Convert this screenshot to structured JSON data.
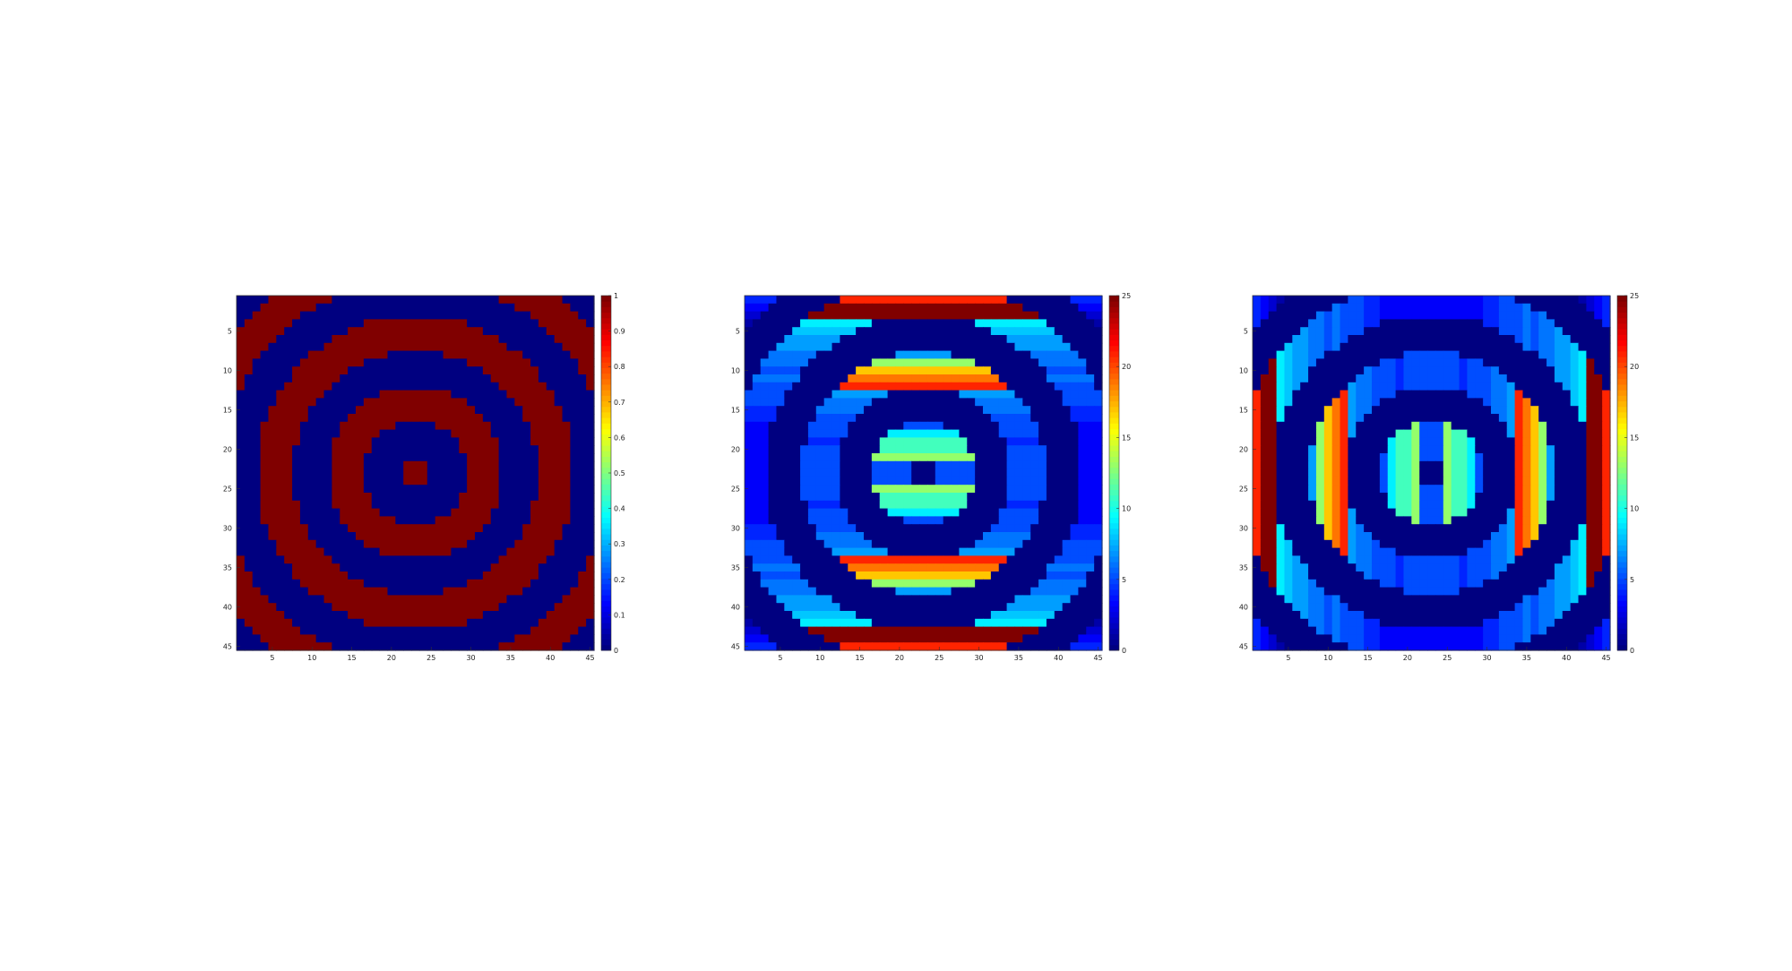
{
  "chart_data": [
    {
      "type": "heatmap",
      "size": 45,
      "pattern": "binary-rings",
      "colormap": "jet",
      "xticks": [
        5,
        10,
        15,
        20,
        25,
        30,
        35,
        40,
        45
      ],
      "yticks": [
        5,
        10,
        15,
        20,
        25,
        30,
        35,
        40,
        45
      ],
      "clim": [
        0,
        1
      ],
      "colorbar_ticks": [
        "0",
        "0.1",
        "0.2",
        "0.3",
        "0.4",
        "0.5",
        "0.6",
        "0.7",
        "0.8",
        "0.9",
        "1"
      ]
    },
    {
      "type": "heatmap",
      "size": 45,
      "pattern": "horizontal-run-length",
      "colormap": "jet",
      "xticks": [
        5,
        10,
        15,
        20,
        25,
        30,
        35,
        40,
        45
      ],
      "yticks": [
        5,
        10,
        15,
        20,
        25,
        30,
        35,
        40,
        45
      ],
      "clim": [
        0,
        25
      ],
      "colorbar_ticks": [
        "0",
        "5",
        "10",
        "15",
        "20",
        "25"
      ]
    },
    {
      "type": "heatmap",
      "size": 45,
      "pattern": "vertical-run-length",
      "colormap": "jet",
      "xticks": [
        5,
        10,
        15,
        20,
        25,
        30,
        35,
        40,
        45
      ],
      "yticks": [
        5,
        10,
        15,
        20,
        25,
        30,
        35,
        40,
        45
      ],
      "clim": [
        0,
        25
      ],
      "colorbar_ticks": [
        "0",
        "5",
        "10",
        "15",
        "20",
        "25"
      ]
    }
  ]
}
